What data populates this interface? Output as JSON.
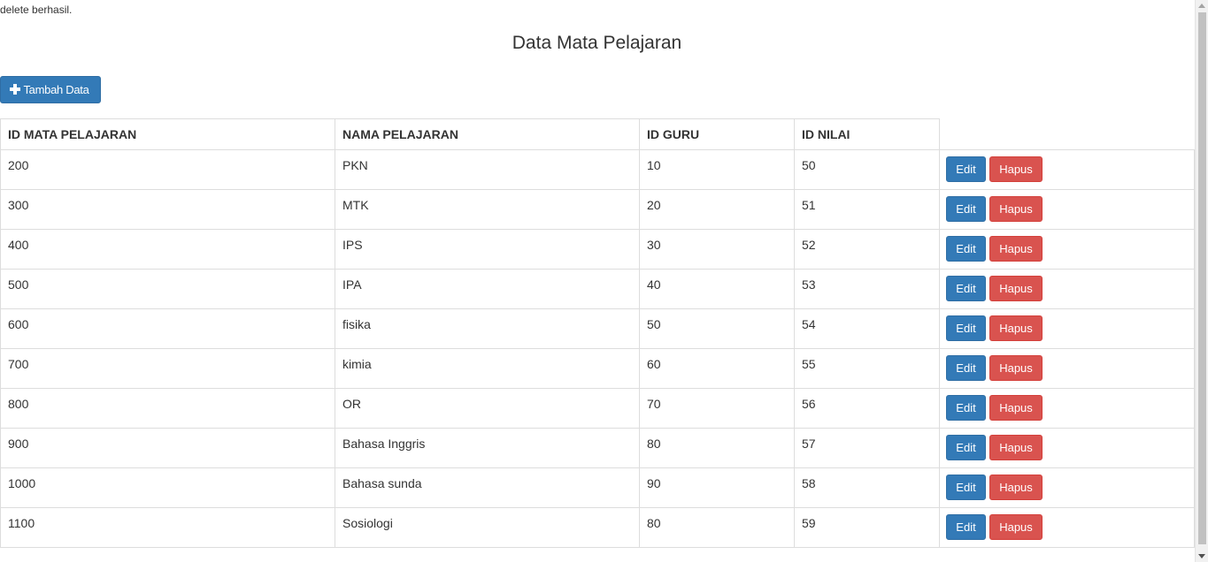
{
  "status_message": "delete berhasil.",
  "page_title": "Data Mata Pelajaran",
  "add_button_label": "Tambah Data",
  "table": {
    "headers": [
      "ID MATA PELAJARAN",
      "NAMA PELAJARAN",
      "ID GURU",
      "ID NILAI"
    ],
    "rows": [
      {
        "id_mapel": "200",
        "nama": "PKN",
        "id_guru": "10",
        "id_nilai": "50"
      },
      {
        "id_mapel": "300",
        "nama": "MTK",
        "id_guru": "20",
        "id_nilai": "51"
      },
      {
        "id_mapel": "400",
        "nama": "IPS",
        "id_guru": "30",
        "id_nilai": "52"
      },
      {
        "id_mapel": "500",
        "nama": "IPA",
        "id_guru": "40",
        "id_nilai": "53"
      },
      {
        "id_mapel": "600",
        "nama": "fisika",
        "id_guru": "50",
        "id_nilai": "54"
      },
      {
        "id_mapel": "700",
        "nama": "kimia",
        "id_guru": "60",
        "id_nilai": "55"
      },
      {
        "id_mapel": "800",
        "nama": "OR",
        "id_guru": "70",
        "id_nilai": "56"
      },
      {
        "id_mapel": "900",
        "nama": "Bahasa Inggris",
        "id_guru": "80",
        "id_nilai": "57"
      },
      {
        "id_mapel": "1000",
        "nama": "Bahasa sunda",
        "id_guru": "90",
        "id_nilai": "58"
      },
      {
        "id_mapel": "1100",
        "nama": "Sosiologi",
        "id_guru": "80",
        "id_nilai": "59"
      }
    ],
    "edit_label": "Edit",
    "delete_label": "Hapus"
  },
  "colors": {
    "primary": "#337ab7",
    "danger": "#d9534f",
    "border": "#dddddd",
    "text": "#333333"
  },
  "icons": {
    "add_button": "plus-icon"
  }
}
